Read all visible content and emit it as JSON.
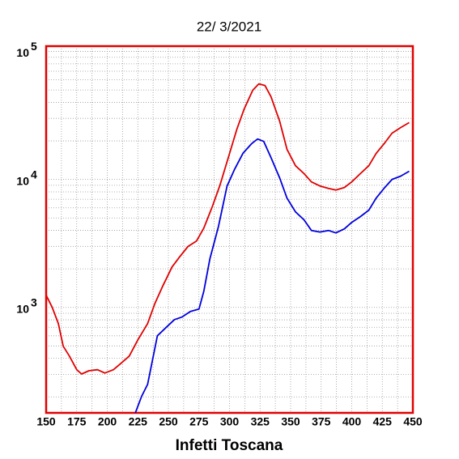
{
  "chart_data": {
    "type": "line",
    "title": "22/ 3/2021",
    "x_label": "Infetti Toscana",
    "xlim": [
      150,
      450
    ],
    "xticks": [
      150,
      175,
      200,
      225,
      250,
      275,
      300,
      325,
      350,
      375,
      400,
      425,
      450
    ],
    "ylim": [
      150,
      110000
    ],
    "log_y": true,
    "grid": true,
    "frame_color": "#e00000",
    "yticks": [
      {
        "value": 1000,
        "label": "10",
        "exponent": "3"
      },
      {
        "value": 10000,
        "label": "10",
        "exponent": "4"
      },
      {
        "value": 100000,
        "label": "10",
        "exponent": "5"
      }
    ],
    "series": [
      {
        "color": "#e00000",
        "x": [
          150,
          155,
          160,
          164,
          169,
          175,
          179,
          185,
          192,
          198,
          205,
          212,
          218,
          225,
          233,
          239,
          245,
          253,
          259,
          266,
          273,
          279,
          286,
          292,
          299,
          306,
          312,
          319,
          324,
          329,
          334,
          341,
          347,
          354,
          361,
          367,
          374,
          381,
          387,
          394,
          400,
          407,
          414,
          420,
          427,
          433,
          440,
          447
        ],
        "values": [
          1245,
          1000,
          747,
          497,
          417,
          326,
          302,
          320,
          326,
          307,
          326,
          371,
          417,
          558,
          747,
          1076,
          1440,
          2070,
          2470,
          2990,
          3300,
          4170,
          6170,
          8890,
          14800,
          24700,
          35500,
          49700,
          55800,
          54200,
          44200,
          28600,
          17200,
          12800,
          11100,
          9560,
          8890,
          8510,
          8270,
          8650,
          9560,
          11100,
          12800,
          16000,
          19300,
          23000,
          25400,
          27800
        ]
      },
      {
        "color": "#0000dd",
        "x": [
          223,
          228,
          233,
          237,
          241,
          248,
          255,
          261,
          268,
          275,
          279,
          284,
          291,
          298,
          304,
          311,
          318,
          323,
          328,
          334,
          341,
          347,
          354,
          361,
          367,
          374,
          381,
          387,
          394,
          400,
          407,
          414,
          420,
          427,
          433,
          440,
          447
        ],
        "values": [
          150,
          201,
          250,
          388,
          600,
          695,
          803,
          840,
          930,
          970,
          1340,
          2400,
          4300,
          8890,
          11900,
          16000,
          19000,
          20700,
          19800,
          14800,
          10300,
          7150,
          5580,
          4830,
          3990,
          3880,
          3990,
          3820,
          4110,
          4620,
          5120,
          5750,
          7150,
          8650,
          10000,
          10600,
          11600
        ]
      }
    ]
  }
}
